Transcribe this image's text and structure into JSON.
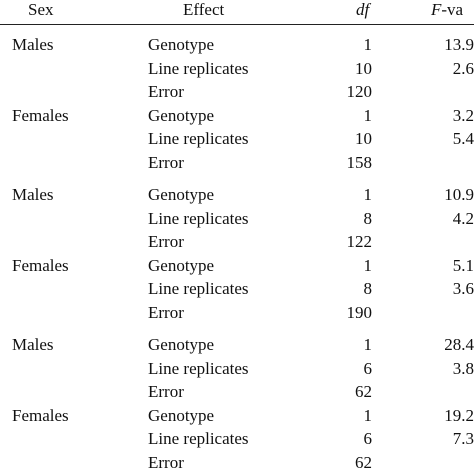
{
  "table": {
    "header": [
      "Sex",
      "Effect",
      "df",
      "F-va"
    ],
    "rows": [
      [
        "Males",
        "Genotype",
        1,
        "13.9"
      ],
      [
        null,
        "Line replicates",
        10,
        "2.6"
      ],
      [
        null,
        "Error",
        120,
        null
      ],
      [
        "Females",
        "Genotype",
        1,
        "3.2"
      ],
      [
        null,
        "Line replicates",
        10,
        "5.4"
      ],
      [
        null,
        "Error",
        158,
        null
      ],
      [
        "Males",
        "Genotype",
        1,
        "10.9"
      ],
      [
        null,
        "Line replicates",
        8,
        "4.2"
      ],
      [
        null,
        "Error",
        122,
        null
      ],
      [
        "Females",
        "Genotype",
        1,
        "5.1"
      ],
      [
        null,
        "Line replicates",
        8,
        "3.6"
      ],
      [
        null,
        "Error",
        190,
        null
      ],
      [
        "Males",
        "Genotype",
        1,
        "28.4"
      ],
      [
        null,
        "Line replicates",
        6,
        "3.8"
      ],
      [
        null,
        "Error",
        62,
        null
      ],
      [
        "Females",
        "Genotype",
        1,
        "19.2"
      ],
      [
        null,
        "Line replicates",
        6,
        "7.3"
      ],
      [
        null,
        "Error",
        62,
        null
      ]
    ]
  }
}
